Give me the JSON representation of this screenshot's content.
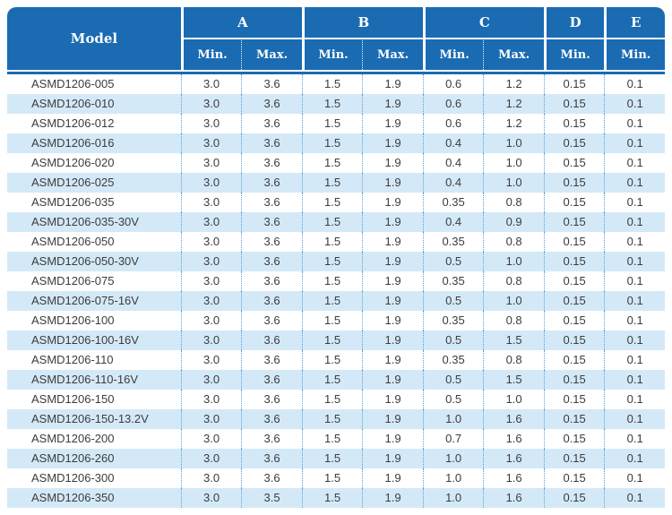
{
  "table": {
    "header": {
      "model_label": "Model",
      "groups": [
        {
          "label": "A",
          "subs": [
            "Min.",
            "Max."
          ]
        },
        {
          "label": "B",
          "subs": [
            "Min.",
            "Max."
          ]
        },
        {
          "label": "C",
          "subs": [
            "Min.",
            "Max."
          ]
        },
        {
          "label": "D",
          "subs": [
            "Min."
          ]
        },
        {
          "label": "E",
          "subs": [
            "Min."
          ]
        }
      ]
    },
    "rows": [
      [
        "ASMD1206-005",
        "3.0",
        "3.6",
        "1.5",
        "1.9",
        "0.6",
        "1.2",
        "0.15",
        "0.1"
      ],
      [
        "ASMD1206-010",
        "3.0",
        "3.6",
        "1.5",
        "1.9",
        "0.6",
        "1.2",
        "0.15",
        "0.1"
      ],
      [
        "ASMD1206-012",
        "3.0",
        "3.6",
        "1.5",
        "1.9",
        "0.6",
        "1.2",
        "0.15",
        "0.1"
      ],
      [
        "ASMD1206-016",
        "3.0",
        "3.6",
        "1.5",
        "1.9",
        "0.4",
        "1.0",
        "0.15",
        "0.1"
      ],
      [
        "ASMD1206-020",
        "3.0",
        "3.6",
        "1.5",
        "1.9",
        "0.4",
        "1.0",
        "0.15",
        "0.1"
      ],
      [
        "ASMD1206-025",
        "3.0",
        "3.6",
        "1.5",
        "1.9",
        "0.4",
        "1.0",
        "0.15",
        "0.1"
      ],
      [
        "ASMD1206-035",
        "3.0",
        "3.6",
        "1.5",
        "1.9",
        "0.35",
        "0.8",
        "0.15",
        "0.1"
      ],
      [
        "ASMD1206-035-30V",
        "3.0",
        "3.6",
        "1.5",
        "1.9",
        "0.4",
        "0.9",
        "0.15",
        "0.1"
      ],
      [
        "ASMD1206-050",
        "3.0",
        "3.6",
        "1.5",
        "1.9",
        "0.35",
        "0.8",
        "0.15",
        "0.1"
      ],
      [
        "ASMD1206-050-30V",
        "3.0",
        "3.6",
        "1.5",
        "1.9",
        "0.5",
        "1.0",
        "0.15",
        "0.1"
      ],
      [
        "ASMD1206-075",
        "3.0",
        "3.6",
        "1.5",
        "1.9",
        "0.35",
        "0.8",
        "0.15",
        "0.1"
      ],
      [
        "ASMD1206-075-16V",
        "3.0",
        "3.6",
        "1.5",
        "1.9",
        "0.5",
        "1.0",
        "0.15",
        "0.1"
      ],
      [
        "ASMD1206-100",
        "3.0",
        "3.6",
        "1.5",
        "1.9",
        "0.35",
        "0.8",
        "0.15",
        "0.1"
      ],
      [
        "ASMD1206-100-16V",
        "3.0",
        "3.6",
        "1.5",
        "1.9",
        "0.5",
        "1.5",
        "0.15",
        "0.1"
      ],
      [
        "ASMD1206-110",
        "3.0",
        "3.6",
        "1.5",
        "1.9",
        "0.35",
        "0.8",
        "0.15",
        "0.1"
      ],
      [
        "ASMD1206-110-16V",
        "3.0",
        "3.6",
        "1.5",
        "1.9",
        "0.5",
        "1.5",
        "0.15",
        "0.1"
      ],
      [
        "ASMD1206-150",
        "3.0",
        "3.6",
        "1.5",
        "1.9",
        "0.5",
        "1.0",
        "0.15",
        "0.1"
      ],
      [
        "ASMD1206-150-13.2V",
        "3.0",
        "3.6",
        "1.5",
        "1.9",
        "1.0",
        "1.6",
        "0.15",
        "0.1"
      ],
      [
        "ASMD1206-200",
        "3.0",
        "3.6",
        "1.5",
        "1.9",
        "0.7",
        "1.6",
        "0.15",
        "0.1"
      ],
      [
        "ASMD1206-260",
        "3.0",
        "3.6",
        "1.5",
        "1.9",
        "1.0",
        "1.6",
        "0.15",
        "0.1"
      ],
      [
        "ASMD1206-300",
        "3.0",
        "3.6",
        "1.5",
        "1.9",
        "1.0",
        "1.6",
        "0.15",
        "0.1"
      ],
      [
        "ASMD1206-350",
        "3.0",
        "3.5",
        "1.5",
        "1.9",
        "1.0",
        "1.6",
        "0.15",
        "0.1"
      ]
    ]
  },
  "colors": {
    "header_bg": "#1a6bb2",
    "header_text": "#ffffff",
    "row_alt_bg": "#d4e9f7",
    "divider_dotted": "#57a4da",
    "body_text": "#3c3c3c"
  }
}
